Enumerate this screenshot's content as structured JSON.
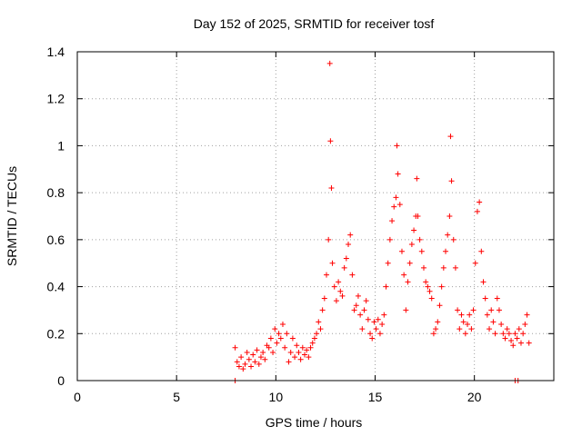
{
  "chart_data": {
    "type": "scatter",
    "title": "Day 152 of 2025, SRMTID for receiver tosf",
    "xlabel": "GPS time / hours",
    "ylabel": "SRMTID / TECUs",
    "xlim": [
      0,
      24
    ],
    "ylim": [
      0,
      1.4
    ],
    "xticks": [
      0,
      5,
      10,
      15,
      20
    ],
    "xtick_labels": [
      "0",
      "5",
      "10",
      "15",
      "20"
    ],
    "yticks": [
      0,
      0.2,
      0.4,
      0.6,
      0.8,
      1.0,
      1.2,
      1.4
    ],
    "ytick_labels": [
      "0",
      "0.2",
      "0.4",
      "0.6",
      "0.8",
      "1",
      "1.2",
      "1.4"
    ],
    "grid": true,
    "marker": "+",
    "color": "#ff0000",
    "series": [
      {
        "name": "SRMTID",
        "x": [
          7.95,
          8.05,
          8.15,
          8.25,
          8.35,
          8.45,
          8.55,
          8.65,
          8.75,
          8.85,
          8.95,
          9.05,
          9.15,
          9.25,
          9.35,
          9.45,
          9.55,
          9.65,
          9.75,
          9.85,
          9.95,
          10.05,
          10.15,
          10.25,
          10.35,
          10.45,
          10.55,
          10.65,
          10.75,
          10.85,
          10.95,
          11.05,
          11.15,
          11.25,
          11.35,
          11.45,
          11.55,
          11.65,
          11.75,
          11.85,
          11.95,
          12.05,
          12.15,
          12.25,
          12.35,
          12.45,
          12.55,
          12.65,
          12.72,
          12.75,
          12.8,
          12.85,
          12.95,
          13.05,
          13.15,
          13.25,
          13.35,
          13.45,
          13.55,
          13.65,
          13.75,
          13.85,
          13.95,
          14.05,
          14.15,
          14.25,
          14.35,
          14.45,
          14.55,
          14.65,
          14.75,
          14.85,
          14.95,
          15.05,
          15.15,
          15.25,
          15.35,
          15.45,
          15.55,
          15.65,
          15.75,
          15.85,
          15.95,
          16.05,
          16.1,
          16.15,
          16.25,
          16.35,
          16.45,
          16.55,
          16.65,
          16.75,
          16.85,
          16.95,
          17.05,
          17.1,
          17.15,
          17.25,
          17.35,
          17.45,
          17.55,
          17.65,
          17.75,
          17.85,
          17.95,
          18.05,
          18.15,
          18.25,
          18.35,
          18.45,
          18.55,
          18.65,
          18.75,
          18.8,
          18.85,
          18.95,
          19.05,
          19.15,
          19.25,
          19.35,
          19.45,
          19.55,
          19.65,
          19.75,
          19.85,
          19.95,
          20.05,
          20.15,
          20.25,
          20.35,
          20.45,
          20.55,
          20.65,
          20.75,
          20.85,
          20.95,
          21.05,
          21.15,
          21.25,
          21.35,
          21.45,
          21.55,
          21.65,
          21.75,
          21.85,
          21.95,
          22.05,
          22.15,
          22.25,
          22.35,
          22.45,
          22.55,
          22.65,
          22.75
        ],
        "y": [
          0.14,
          0.08,
          0.06,
          0.1,
          0.05,
          0.07,
          0.12,
          0.09,
          0.06,
          0.11,
          0.08,
          0.13,
          0.07,
          0.1,
          0.12,
          0.09,
          0.15,
          0.14,
          0.18,
          0.12,
          0.22,
          0.16,
          0.2,
          0.18,
          0.24,
          0.14,
          0.2,
          0.08,
          0.12,
          0.18,
          0.1,
          0.15,
          0.12,
          0.09,
          0.14,
          0.11,
          0.13,
          0.1,
          0.14,
          0.16,
          0.18,
          0.2,
          0.25,
          0.22,
          0.3,
          0.35,
          0.45,
          0.6,
          1.35,
          1.02,
          0.82,
          0.5,
          0.4,
          0.34,
          0.42,
          0.38,
          0.36,
          0.48,
          0.52,
          0.58,
          0.62,
          0.45,
          0.3,
          0.32,
          0.36,
          0.28,
          0.22,
          0.3,
          0.34,
          0.26,
          0.2,
          0.18,
          0.25,
          0.22,
          0.26,
          0.2,
          0.24,
          0.28,
          0.4,
          0.5,
          0.6,
          0.68,
          0.74,
          0.78,
          1.0,
          0.88,
          0.75,
          0.55,
          0.45,
          0.3,
          0.42,
          0.5,
          0.58,
          0.64,
          0.7,
          0.86,
          0.7,
          0.6,
          0.55,
          0.48,
          0.42,
          0.4,
          0.38,
          0.35,
          0.2,
          0.22,
          0.25,
          0.32,
          0.4,
          0.48,
          0.55,
          0.62,
          0.7,
          1.04,
          0.85,
          0.6,
          0.48,
          0.3,
          0.22,
          0.28,
          0.25,
          0.2,
          0.24,
          0.28,
          0.22,
          0.3,
          0.5,
          0.72,
          0.76,
          0.55,
          0.42,
          0.35,
          0.28,
          0.22,
          0.3,
          0.25,
          0.2,
          0.35,
          0.3,
          0.24,
          0.2,
          0.18,
          0.22,
          0.2,
          0.17,
          0.15,
          0.2,
          0.18,
          0.22,
          0.16,
          0.2,
          0.24,
          0.28,
          0.16
        ]
      }
    ],
    "zero_markers_x": [
      7.95,
      22.05,
      22.2
    ]
  }
}
